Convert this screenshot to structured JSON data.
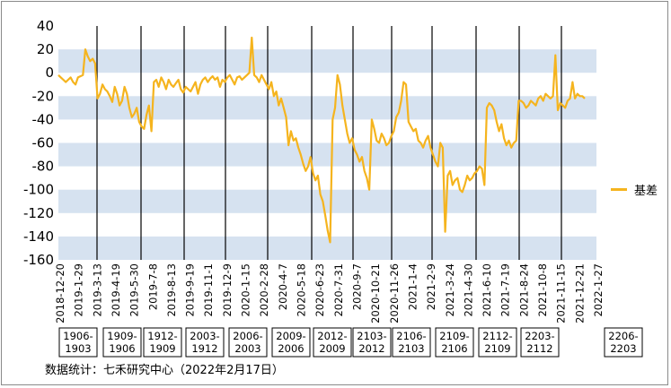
{
  "chart_data": {
    "type": "line",
    "title": "",
    "xlabel": "",
    "ylabel": "",
    "ylim": [
      -160,
      40
    ],
    "yticks": [
      40,
      20,
      0,
      -20,
      -40,
      -60,
      -80,
      -100,
      -120,
      -140,
      -160
    ],
    "x_tick_labels": [
      "2018-12-20",
      "2019-1-29",
      "2019-3-13",
      "2019-4-19",
      "2019-5-30",
      "2019-7-8",
      "2019-8-13",
      "2019-9-19",
      "2019-11-1",
      "2019-12-9",
      "2020-1-15",
      "2020-2-28",
      "2020-4-7",
      "2020-5-18",
      "2020-6-23",
      "2020-7-31",
      "2020-9-7",
      "2020-10-21",
      "2020-11-26",
      "2021-1-4",
      "2021-2-9",
      "2021-3-24",
      "2021-4-30",
      "2021-6-10",
      "2021-7-19",
      "2021-8-24",
      "2021-10-8",
      "2021-11-15",
      "2021-12-21",
      "2022-1-27"
    ],
    "bands_color": "#d6e2f0",
    "line_color": "#f5b41e",
    "grid": false,
    "legend_position": "right",
    "contracts": [
      "1906-1903",
      "1909-1906",
      "1912-1909",
      "2003-1912",
      "2006-2003",
      "2009-2006",
      "2012-2009",
      "2103-2012",
      "2106-2103",
      "2109-2106",
      "2112-2109",
      "2203-2112",
      "2206-2203"
    ],
    "series": [
      {
        "name": "基差",
        "values": [
          -2,
          -4,
          -6,
          -8,
          -6,
          -4,
          -8,
          -10,
          -4,
          -3,
          -2,
          20,
          14,
          10,
          12,
          8,
          -22,
          -18,
          -10,
          -14,
          -16,
          -20,
          -25,
          -12,
          -18,
          -28,
          -24,
          -12,
          -18,
          -30,
          -38,
          -35,
          -30,
          -42,
          -46,
          -48,
          -36,
          -28,
          -50,
          -8,
          -6,
          -12,
          -4,
          -8,
          -14,
          -6,
          -10,
          -12,
          -9,
          -6,
          -14,
          -17,
          -12,
          -14,
          -16,
          -12,
          -8,
          -18,
          -10,
          -6,
          -4,
          -8,
          -5,
          -3,
          -6,
          -4,
          -12,
          -6,
          -8,
          -4,
          -2,
          -6,
          -10,
          -4,
          -3,
          -6,
          -4,
          -2,
          0,
          30,
          -2,
          -4,
          -8,
          -2,
          -6,
          -10,
          -14,
          -8,
          -20,
          -16,
          -28,
          -22,
          -30,
          -38,
          -62,
          -50,
          -58,
          -56,
          -64,
          -70,
          -78,
          -84,
          -80,
          -72,
          -86,
          -92,
          -88,
          -104,
          -110,
          -122,
          -135,
          -145,
          -40,
          -30,
          -2,
          -10,
          -28,
          -40,
          -52,
          -60,
          -56,
          -66,
          -70,
          -76,
          -72,
          -84,
          -90,
          -100,
          -40,
          -48,
          -58,
          -60,
          -52,
          -56,
          -62,
          -60,
          -54,
          -50,
          -38,
          -34,
          -24,
          -8,
          -10,
          -42,
          -46,
          -50,
          -48,
          -58,
          -60,
          -64,
          -58,
          -54,
          -64,
          -70,
          -76,
          -80,
          -60,
          -64,
          -136,
          -88,
          -84,
          -96,
          -92,
          -90,
          -100,
          -102,
          -96,
          -88,
          -92,
          -90,
          -86,
          -84,
          -80,
          -82,
          -96,
          -30,
          -26,
          -28,
          -32,
          -42,
          -50,
          -44,
          -56,
          -62,
          -58,
          -64,
          -60,
          -58,
          -24,
          -24,
          -26,
          -30,
          -28,
          -24,
          -26,
          -28,
          -22,
          -20,
          -24,
          -18,
          -20,
          -22,
          -20,
          15,
          -32,
          -26,
          -28,
          -30,
          -24,
          -22,
          -8,
          -22,
          -18,
          -20,
          -20,
          -22
        ]
      }
    ]
  },
  "legend": {
    "label": "基差"
  },
  "source": "数据统计：七禾研究中心（2022年2月17日）"
}
